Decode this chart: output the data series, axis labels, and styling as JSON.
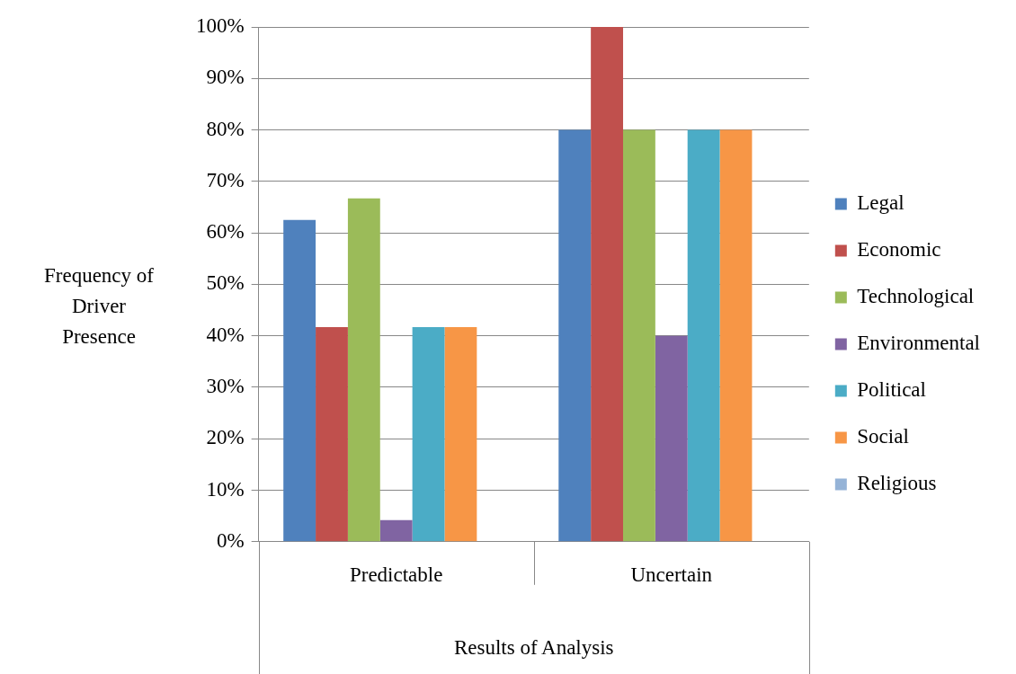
{
  "chart_data": {
    "type": "bar",
    "xlabel": "Results of Analysis",
    "ylabel": "Frequency of Driver Presence",
    "categories": [
      "Predictable",
      "Uncertain"
    ],
    "series": [
      {
        "name": "Legal",
        "color": "#4f81bd",
        "values": [
          62.5,
          80
        ]
      },
      {
        "name": "Economic",
        "color": "#c0504d",
        "values": [
          41.7,
          100
        ]
      },
      {
        "name": "Technological",
        "color": "#9bbb59",
        "values": [
          66.7,
          80
        ]
      },
      {
        "name": "Environmental",
        "color": "#8064a2",
        "values": [
          4.2,
          40
        ]
      },
      {
        "name": "Political",
        "color": "#4bacc6",
        "values": [
          41.7,
          80
        ]
      },
      {
        "name": "Social",
        "color": "#f79646",
        "values": [
          41.7,
          80
        ]
      },
      {
        "name": "Religious",
        "color": "#95b3d7",
        "values": [
          0,
          0
        ]
      }
    ],
    "ylim": [
      0,
      100
    ],
    "yticks": [
      {
        "value": 0,
        "label": "0%"
      },
      {
        "value": 10,
        "label": "10%"
      },
      {
        "value": 20,
        "label": "20%"
      },
      {
        "value": 30,
        "label": "30%"
      },
      {
        "value": 40,
        "label": "40%"
      },
      {
        "value": 50,
        "label": "50%"
      },
      {
        "value": 60,
        "label": "60%"
      },
      {
        "value": 70,
        "label": "70%"
      },
      {
        "value": 80,
        "label": "80%"
      },
      {
        "value": 90,
        "label": "90%"
      },
      {
        "value": 100,
        "label": "100%"
      }
    ],
    "grid": "y",
    "legend": "right"
  }
}
